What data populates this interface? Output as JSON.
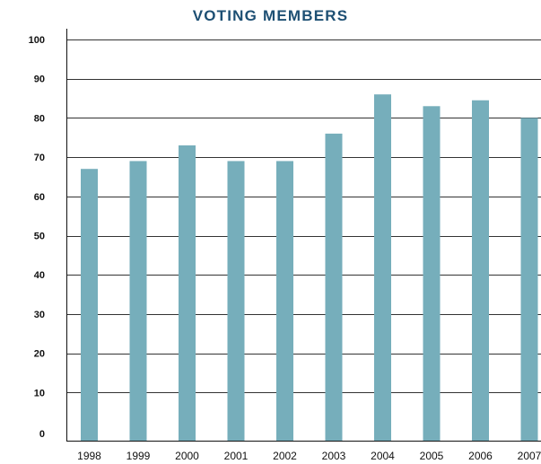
{
  "chart_data": {
    "type": "bar",
    "title": "VOTING MEMBERS",
    "xlabel": "",
    "ylabel": "",
    "categories": [
      "1998",
      "1999",
      "2000",
      "2001",
      "2002",
      "2003",
      "2004",
      "2005",
      "2006",
      "2007"
    ],
    "values": [
      67,
      69,
      73,
      69,
      69,
      76,
      86,
      83,
      84.5,
      80
    ],
    "ylim": [
      0,
      100
    ],
    "yticks": [
      "0",
      "10",
      "20",
      "30",
      "40",
      "50",
      "60",
      "70",
      "80",
      "90",
      "100"
    ],
    "grid": true,
    "legend": "none",
    "colors": {
      "bar": "#76aebb",
      "title": "#1d4f73",
      "grid": "#333333"
    }
  }
}
